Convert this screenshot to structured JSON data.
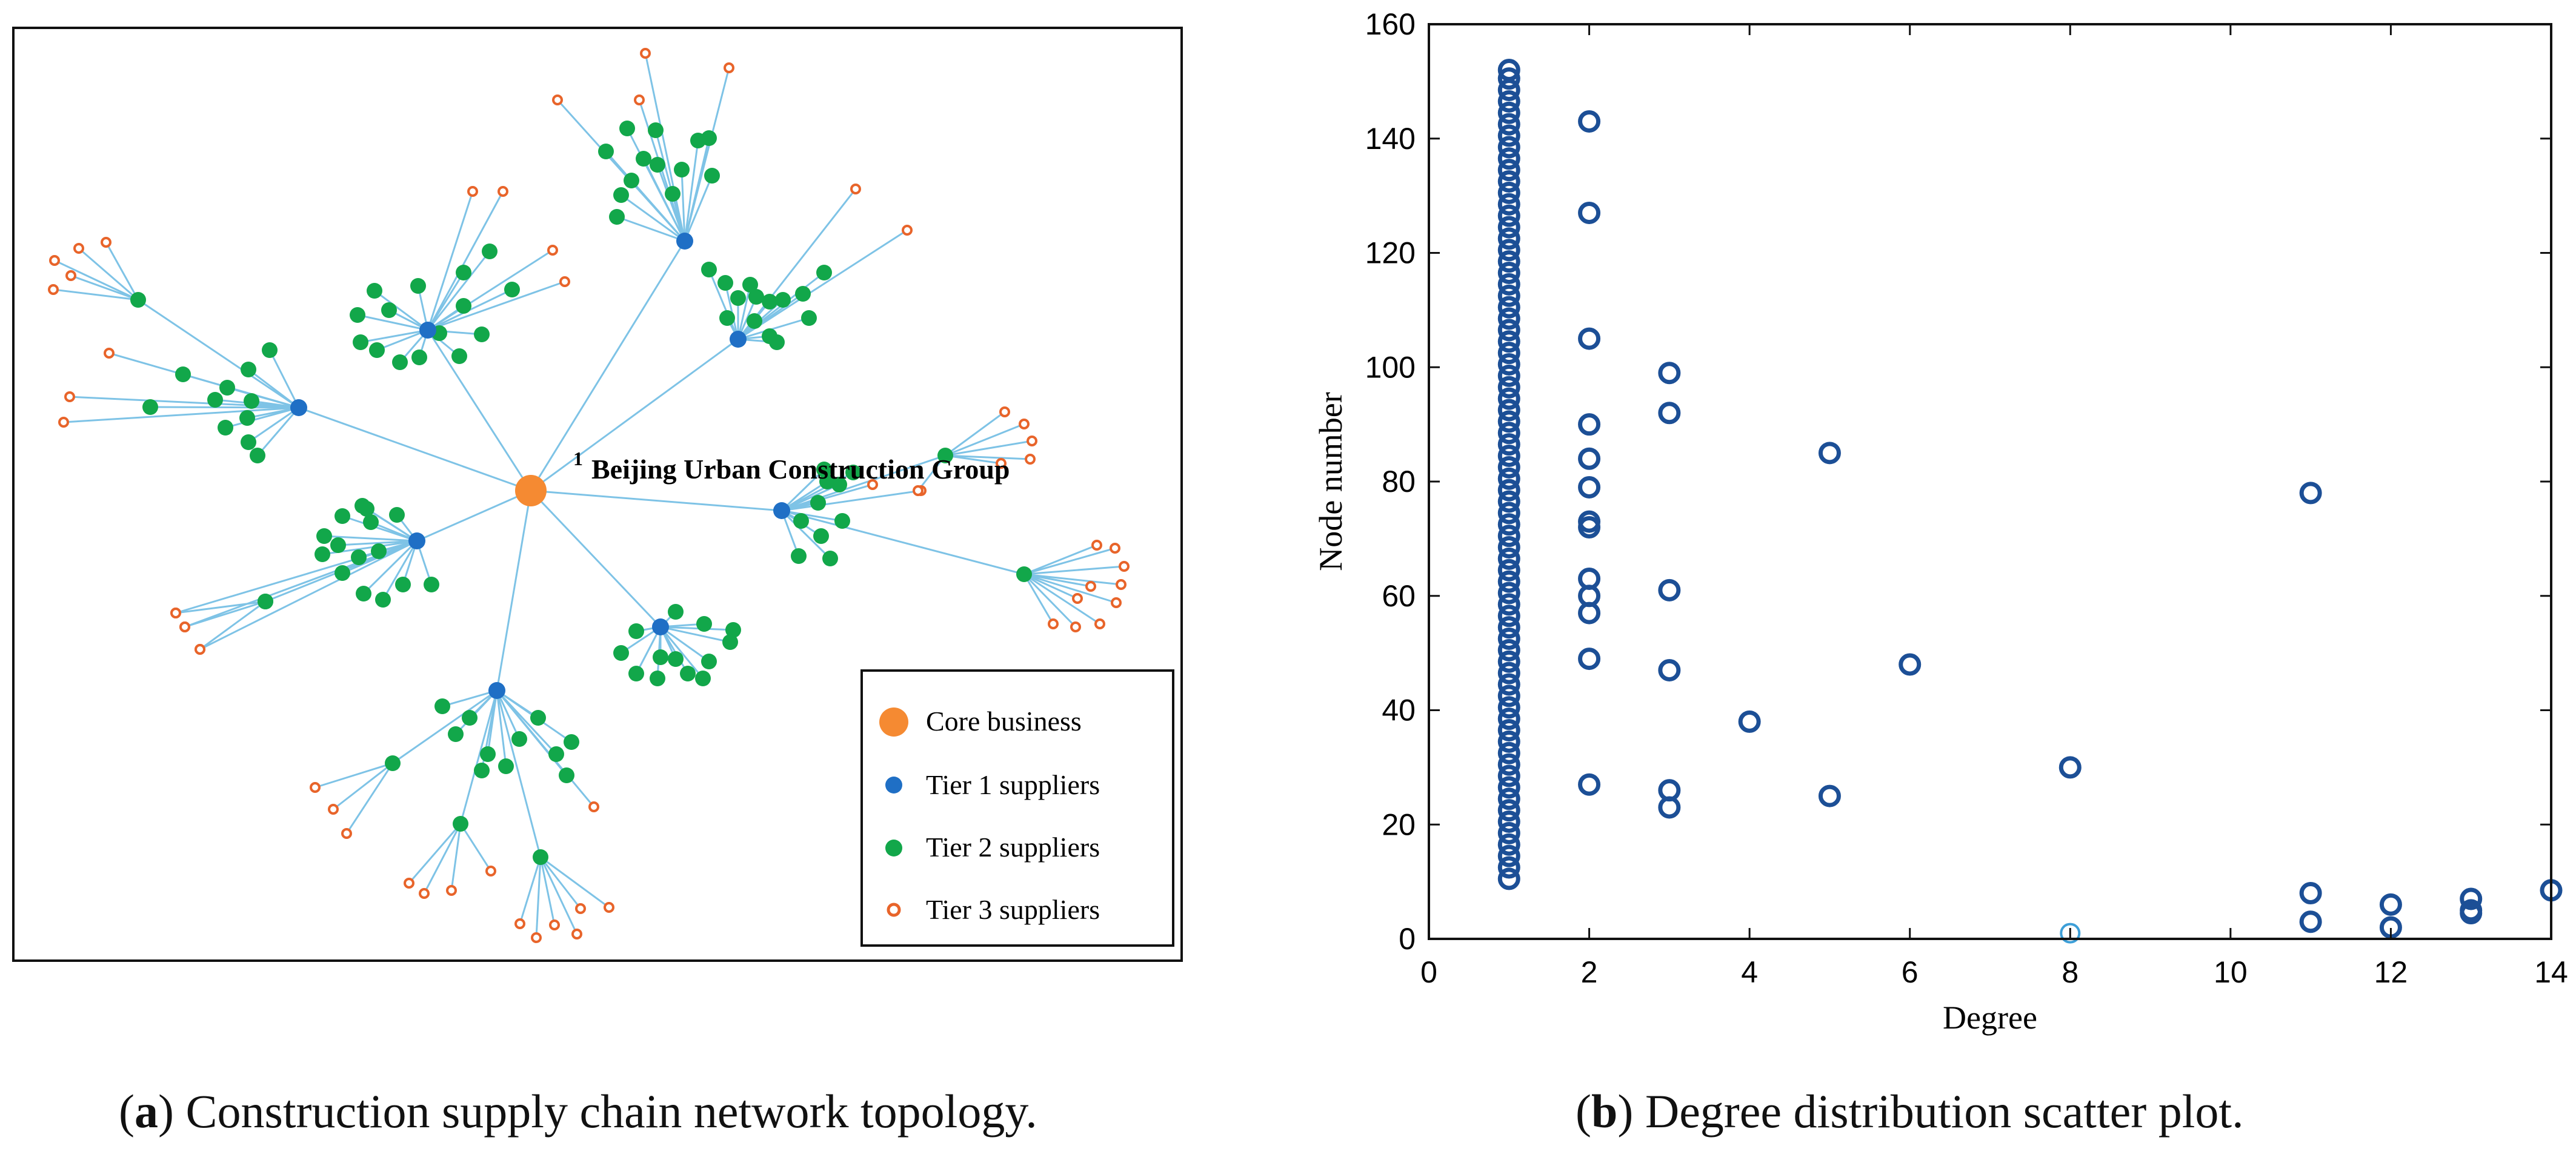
{
  "figure_a": {
    "caption_letter": "a",
    "caption_text": "Construction supply chain network topology.",
    "core_label_index": "1",
    "core_label_name": "Beijing Urban Construction Group",
    "legend": [
      {
        "label": "Core business",
        "color": "#f58a32",
        "symbol": "large-dot"
      },
      {
        "label": "Tier 1 suppliers",
        "color": "#1f6fc5",
        "symbol": "dot"
      },
      {
        "label": "Tier 2 suppliers",
        "color": "#12a74a",
        "symbol": "dot"
      },
      {
        "label": "Tier 3 suppliers",
        "color": "#e8642a",
        "symbol": "ring"
      }
    ],
    "edge_color": "#7ec3e6"
  },
  "figure_b": {
    "caption_letter": "b",
    "caption_text": "Degree distribution scatter plot."
  },
  "chart_data": {
    "type": "scatter",
    "title": "",
    "xlabel": "Degree",
    "ylabel": "Node number",
    "xlim": [
      0,
      14
    ],
    "ylim": [
      0,
      160
    ],
    "xticks": [
      0,
      2,
      4,
      6,
      8,
      10,
      12,
      14
    ],
    "yticks": [
      0,
      20,
      40,
      60,
      80,
      100,
      120,
      140,
      160
    ],
    "grid": false,
    "marker_color": "#1c4f96",
    "series": [
      {
        "name": "degree-1 nodes",
        "points": [
          [
            1,
            10.5
          ],
          [
            1,
            12.5
          ],
          [
            1,
            14.5
          ],
          [
            1,
            16.5
          ],
          [
            1,
            18.5
          ],
          [
            1,
            20.5
          ],
          [
            1,
            22.5
          ],
          [
            1,
            24.5
          ],
          [
            1,
            26.5
          ],
          [
            1,
            28.5
          ],
          [
            1,
            30.5
          ],
          [
            1,
            32.5
          ],
          [
            1,
            34.5
          ],
          [
            1,
            36.5
          ],
          [
            1,
            38.5
          ],
          [
            1,
            40.5
          ],
          [
            1,
            42.5
          ],
          [
            1,
            44.5
          ],
          [
            1,
            46.5
          ],
          [
            1,
            48.5
          ],
          [
            1,
            50.5
          ],
          [
            1,
            52.5
          ],
          [
            1,
            54.5
          ],
          [
            1,
            56.5
          ],
          [
            1,
            58.5
          ],
          [
            1,
            60.5
          ],
          [
            1,
            62.5
          ],
          [
            1,
            64.5
          ],
          [
            1,
            66.5
          ],
          [
            1,
            68.5
          ],
          [
            1,
            70.5
          ],
          [
            1,
            72.5
          ],
          [
            1,
            74.5
          ],
          [
            1,
            76.5
          ],
          [
            1,
            78.5
          ],
          [
            1,
            80.5
          ],
          [
            1,
            82.5
          ],
          [
            1,
            84.5
          ],
          [
            1,
            86.5
          ],
          [
            1,
            88.5
          ],
          [
            1,
            90.5
          ],
          [
            1,
            92.5
          ],
          [
            1,
            94.5
          ],
          [
            1,
            96.5
          ],
          [
            1,
            98.5
          ],
          [
            1,
            100.5
          ],
          [
            1,
            102.5
          ],
          [
            1,
            104.5
          ],
          [
            1,
            106.5
          ],
          [
            1,
            108.5
          ],
          [
            1,
            110.5
          ],
          [
            1,
            112.5
          ],
          [
            1,
            114.5
          ],
          [
            1,
            116.5
          ],
          [
            1,
            118.5
          ],
          [
            1,
            120.5
          ],
          [
            1,
            122.5
          ],
          [
            1,
            124.5
          ],
          [
            1,
            126.5
          ],
          [
            1,
            128.5
          ],
          [
            1,
            130.5
          ],
          [
            1,
            132.5
          ],
          [
            1,
            134.5
          ],
          [
            1,
            136.5
          ],
          [
            1,
            138.5
          ],
          [
            1,
            140.5
          ],
          [
            1,
            142.5
          ],
          [
            1,
            144.5
          ],
          [
            1,
            146.5
          ],
          [
            1,
            148.5
          ],
          [
            1,
            150.5
          ],
          [
            1,
            152
          ]
        ]
      },
      {
        "name": "higher-degree nodes",
        "points": [
          [
            2,
            143
          ],
          [
            2,
            127
          ],
          [
            2,
            105
          ],
          [
            2,
            90
          ],
          [
            2,
            84
          ],
          [
            2,
            79
          ],
          [
            2,
            73
          ],
          [
            2,
            72
          ],
          [
            2,
            63
          ],
          [
            2,
            60
          ],
          [
            2,
            57
          ],
          [
            2,
            49
          ],
          [
            2,
            27
          ],
          [
            3,
            99
          ],
          [
            3,
            92
          ],
          [
            3,
            61
          ],
          [
            3,
            47
          ],
          [
            3,
            26
          ],
          [
            3,
            23
          ],
          [
            4,
            38
          ],
          [
            5,
            85
          ],
          [
            5,
            25
          ],
          [
            6,
            48
          ],
          [
            8,
            30
          ],
          [
            11,
            78
          ],
          [
            11,
            8
          ],
          [
            11,
            3
          ],
          [
            12,
            6
          ],
          [
            12,
            2
          ],
          [
            13,
            7
          ],
          [
            13,
            5
          ],
          [
            13,
            4.5
          ],
          [
            14,
            8.5
          ]
        ]
      },
      {
        "name": "core node",
        "points": [
          [
            8,
            1
          ]
        ],
        "color": "#3d9fd8"
      }
    ]
  }
}
